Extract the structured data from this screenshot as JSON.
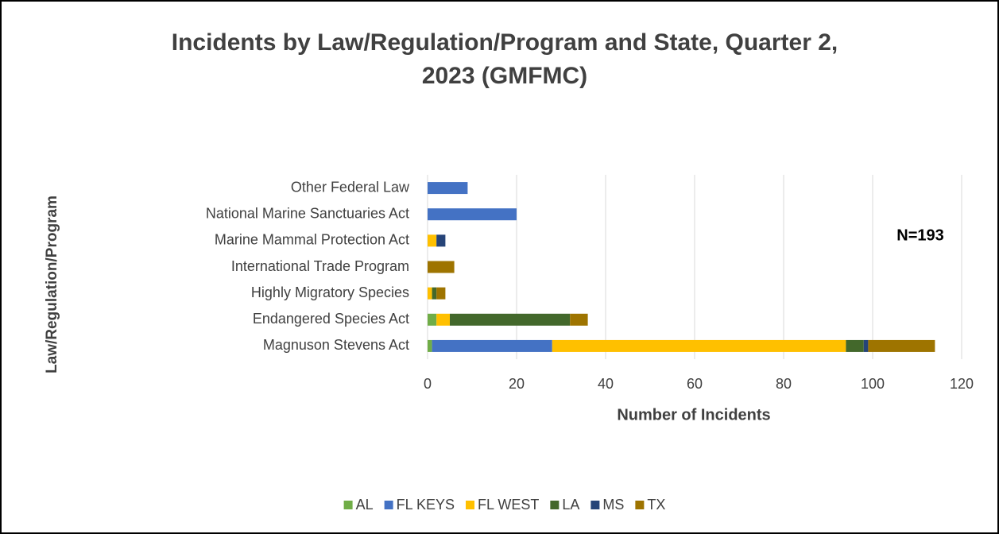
{
  "chart_data": {
    "type": "hbar-stacked",
    "title": "Incidents by Law/Regulation/Program and State, Quarter 2, 2023 (GMFMC)",
    "x_label": "Number of Incidents",
    "y_label": "Law/Regulation/Program",
    "annotation": "N=193",
    "categories": [
      "Other Federal Law",
      "National Marine Sanctuaries Act",
      "Marine Mammal Protection Act",
      "International Trade Program",
      "Highly Migratory Species",
      "Endangered Species Act",
      "Magnuson Stevens Act"
    ],
    "series": [
      {
        "name": "AL",
        "color": "#70ad47",
        "values": [
          0,
          0,
          0,
          0,
          0,
          2,
          1
        ]
      },
      {
        "name": "FL KEYS",
        "color": "#4472c4",
        "values": [
          9,
          20,
          0,
          0,
          0,
          0,
          27
        ]
      },
      {
        "name": "FL WEST",
        "color": "#ffc000",
        "values": [
          0,
          0,
          2,
          0,
          1,
          3,
          66
        ]
      },
      {
        "name": "LA",
        "color": "#43682b",
        "values": [
          0,
          0,
          0,
          0,
          1,
          27,
          4
        ]
      },
      {
        "name": "MS",
        "color": "#264478",
        "values": [
          0,
          0,
          2,
          0,
          0,
          0,
          1
        ]
      },
      {
        "name": "TX",
        "color": "#9e7400",
        "values": [
          0,
          0,
          0,
          6,
          2,
          4,
          15
        ]
      }
    ],
    "xlim": [
      0,
      120
    ],
    "xticks": [
      0,
      20,
      40,
      60,
      80,
      100,
      120
    ],
    "grid": true,
    "legend": "bottom"
  }
}
